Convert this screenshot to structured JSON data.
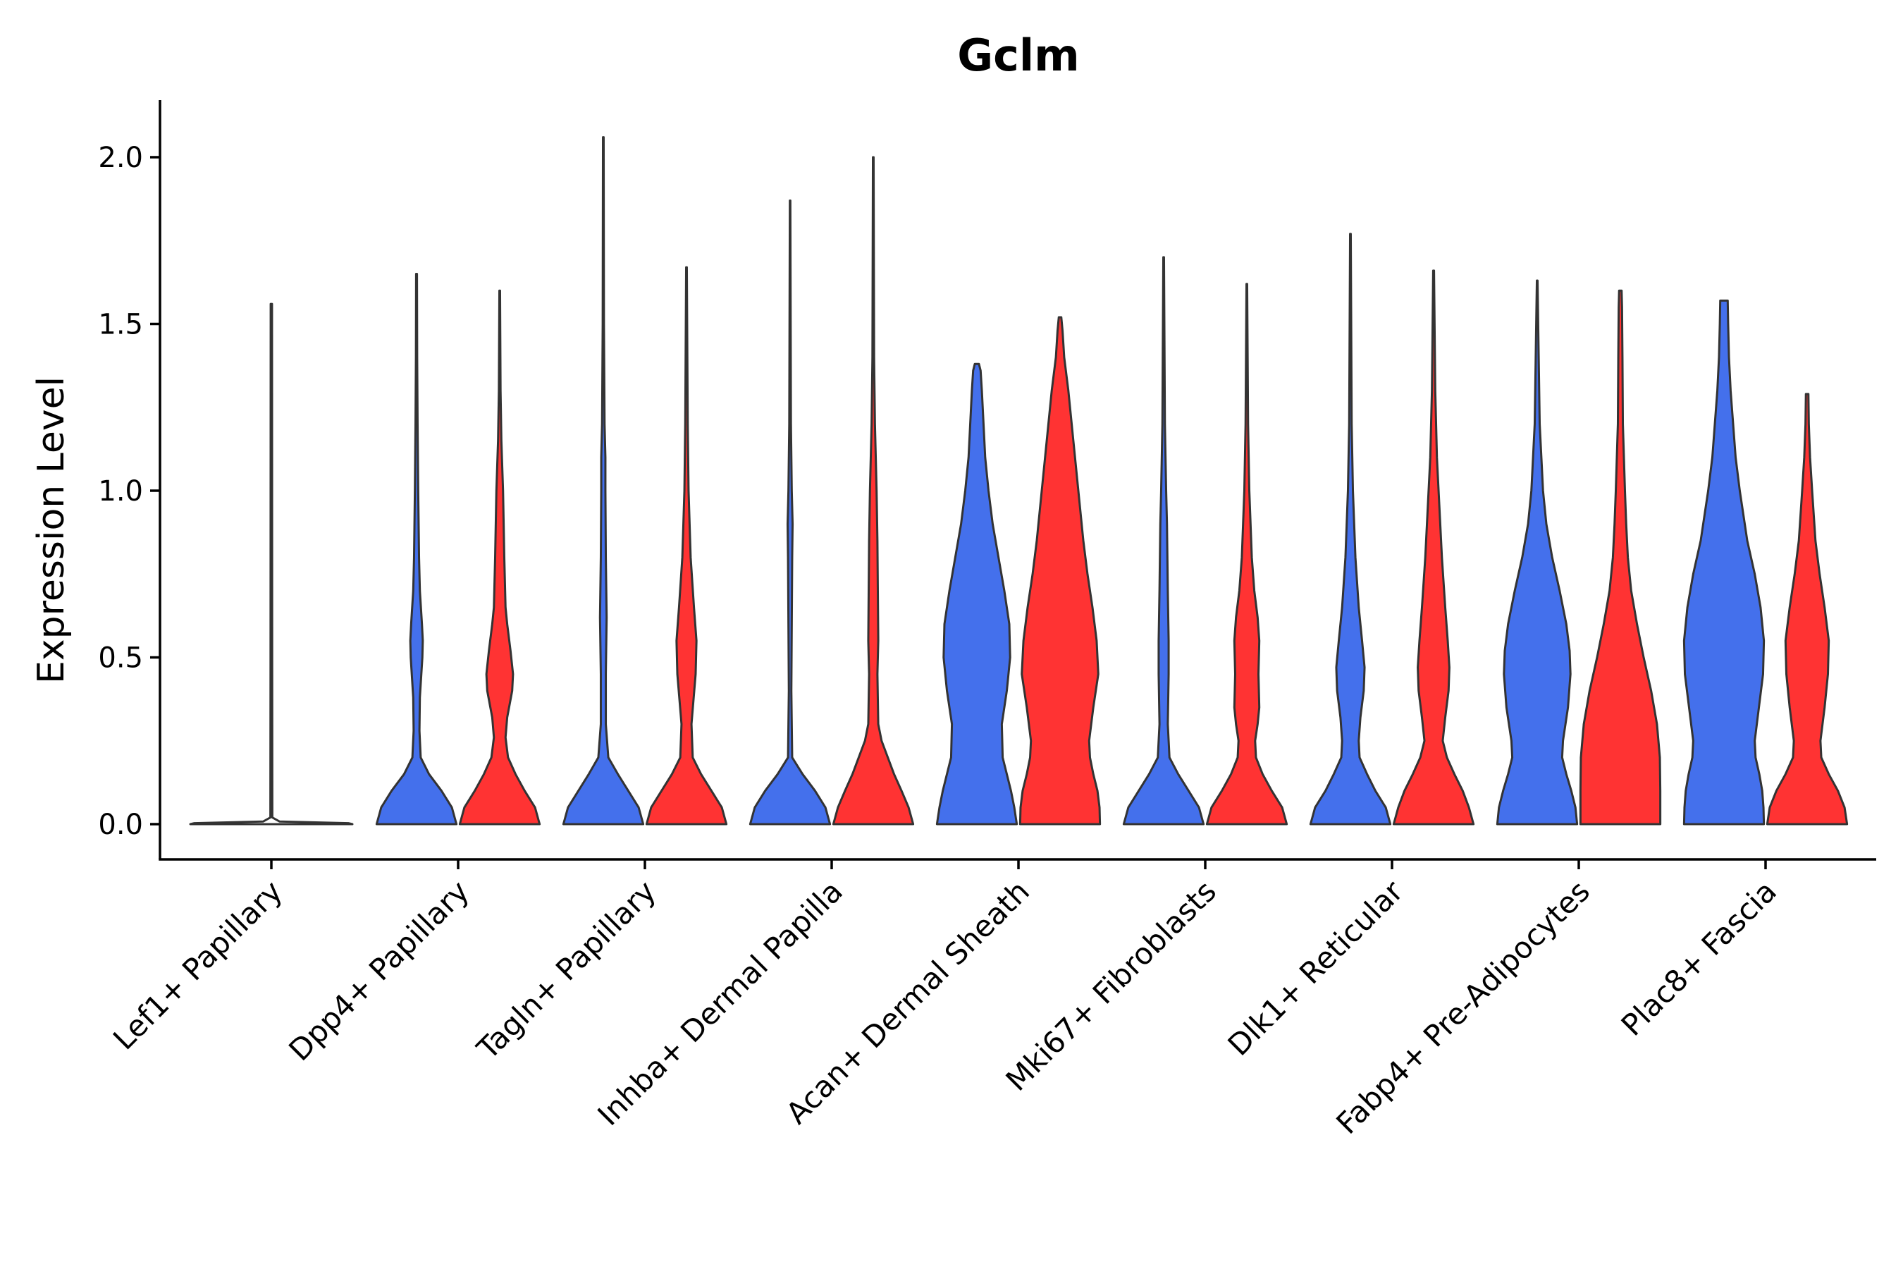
{
  "chart_data": {
    "type": "violin",
    "title": "Gclm",
    "xlabel": "",
    "ylabel": "Expression Level",
    "ylim": [
      -0.1,
      2.17
    ],
    "yticks": [
      0.0,
      0.5,
      1.0,
      1.5,
      2.0
    ],
    "ytick_labels": [
      "0.0",
      "0.5",
      "1.0",
      "1.5",
      "2.0"
    ],
    "legend": "none",
    "series": [
      {
        "name": "group-blue",
        "color": "#4470EC"
      },
      {
        "name": "group-red",
        "color": "#FF3333"
      }
    ],
    "categories": [
      "Lef1+ Papillary",
      "Dpp4+ Papillary",
      "Tagln+ Papillary",
      "Inhba+ Dermal Papilla",
      "Acan+ Dermal Sheath",
      "Mki67+ Fibroblasts",
      "Dlk1+ Reticular",
      "Fabp4+ Pre-Adipocytes",
      "Plac8+ Fascia"
    ],
    "violins": [
      {
        "category": "Lef1+ Papillary",
        "series": "group-single",
        "max": 1.56,
        "profile": [
          [
            0,
            1.0
          ],
          [
            0.003,
            0.95
          ],
          [
            0.008,
            0.1
          ],
          [
            0.02,
            0.012
          ],
          [
            0.5,
            0.01
          ],
          [
            1.56,
            0.008
          ]
        ]
      },
      {
        "category": "Dpp4+ Papillary",
        "series": "group-blue",
        "max": 1.65,
        "profile": [
          [
            0,
            0.96
          ],
          [
            0.05,
            0.85
          ],
          [
            0.1,
            0.6
          ],
          [
            0.15,
            0.3
          ],
          [
            0.2,
            0.1
          ],
          [
            0.28,
            0.07
          ],
          [
            0.38,
            0.08
          ],
          [
            0.5,
            0.14
          ],
          [
            0.55,
            0.15
          ],
          [
            0.6,
            0.13
          ],
          [
            0.7,
            0.08
          ],
          [
            0.8,
            0.06
          ],
          [
            1.0,
            0.04
          ],
          [
            1.2,
            0.025
          ],
          [
            1.4,
            0.015
          ],
          [
            1.65,
            0.01
          ]
        ]
      },
      {
        "category": "Dpp4+ Papillary",
        "series": "group-red",
        "max": 1.6,
        "profile": [
          [
            0,
            0.96
          ],
          [
            0.05,
            0.85
          ],
          [
            0.1,
            0.6
          ],
          [
            0.15,
            0.38
          ],
          [
            0.2,
            0.2
          ],
          [
            0.26,
            0.14
          ],
          [
            0.32,
            0.18
          ],
          [
            0.4,
            0.3
          ],
          [
            0.45,
            0.32
          ],
          [
            0.52,
            0.26
          ],
          [
            0.6,
            0.18
          ],
          [
            0.65,
            0.14
          ],
          [
            0.8,
            0.11
          ],
          [
            1.0,
            0.08
          ],
          [
            1.15,
            0.04
          ],
          [
            1.3,
            0.02
          ],
          [
            1.6,
            0.008
          ]
        ]
      },
      {
        "category": "Tagln+ Papillary",
        "series": "group-blue",
        "max": 2.06,
        "profile": [
          [
            0,
            0.96
          ],
          [
            0.05,
            0.85
          ],
          [
            0.1,
            0.6
          ],
          [
            0.15,
            0.35
          ],
          [
            0.2,
            0.12
          ],
          [
            0.3,
            0.06
          ],
          [
            0.45,
            0.06
          ],
          [
            0.62,
            0.08
          ],
          [
            0.8,
            0.06
          ],
          [
            1.0,
            0.05
          ],
          [
            1.1,
            0.05
          ],
          [
            1.2,
            0.03
          ],
          [
            1.5,
            0.015
          ],
          [
            2.06,
            0.008
          ]
        ]
      },
      {
        "category": "Tagln+ Papillary",
        "series": "group-red",
        "max": 1.67,
        "profile": [
          [
            0,
            0.96
          ],
          [
            0.05,
            0.85
          ],
          [
            0.1,
            0.6
          ],
          [
            0.15,
            0.35
          ],
          [
            0.2,
            0.15
          ],
          [
            0.3,
            0.12
          ],
          [
            0.45,
            0.22
          ],
          [
            0.55,
            0.24
          ],
          [
            0.65,
            0.18
          ],
          [
            0.8,
            0.1
          ],
          [
            1.0,
            0.05
          ],
          [
            1.2,
            0.03
          ],
          [
            1.67,
            0.008
          ]
        ]
      },
      {
        "category": "Inhba+ Dermal Papilla",
        "series": "group-blue",
        "max": 1.87,
        "profile": [
          [
            0,
            0.96
          ],
          [
            0.05,
            0.85
          ],
          [
            0.1,
            0.6
          ],
          [
            0.15,
            0.3
          ],
          [
            0.2,
            0.05
          ],
          [
            0.4,
            0.03
          ],
          [
            0.6,
            0.04
          ],
          [
            0.8,
            0.05
          ],
          [
            0.9,
            0.06
          ],
          [
            1.0,
            0.04
          ],
          [
            1.2,
            0.02
          ],
          [
            1.87,
            0.006
          ]
        ]
      },
      {
        "category": "Inhba+ Dermal Papilla",
        "series": "group-red",
        "max": 2.0,
        "profile": [
          [
            0,
            0.96
          ],
          [
            0.05,
            0.85
          ],
          [
            0.1,
            0.68
          ],
          [
            0.15,
            0.5
          ],
          [
            0.2,
            0.35
          ],
          [
            0.25,
            0.2
          ],
          [
            0.3,
            0.12
          ],
          [
            0.45,
            0.1
          ],
          [
            0.55,
            0.12
          ],
          [
            0.7,
            0.11
          ],
          [
            0.85,
            0.1
          ],
          [
            1.0,
            0.08
          ],
          [
            1.2,
            0.04
          ],
          [
            1.4,
            0.02
          ],
          [
            2.0,
            0.008
          ]
        ]
      },
      {
        "category": "Acan+ Dermal Sheath",
        "series": "group-blue",
        "max": 1.38,
        "profile": [
          [
            0,
            0.96
          ],
          [
            0.05,
            0.9
          ],
          [
            0.1,
            0.82
          ],
          [
            0.15,
            0.72
          ],
          [
            0.2,
            0.62
          ],
          [
            0.3,
            0.6
          ],
          [
            0.4,
            0.72
          ],
          [
            0.5,
            0.8
          ],
          [
            0.6,
            0.78
          ],
          [
            0.7,
            0.66
          ],
          [
            0.8,
            0.52
          ],
          [
            0.9,
            0.38
          ],
          [
            1.0,
            0.28
          ],
          [
            1.1,
            0.2
          ],
          [
            1.2,
            0.16
          ],
          [
            1.3,
            0.12
          ],
          [
            1.36,
            0.09
          ],
          [
            1.38,
            0.05
          ]
        ]
      },
      {
        "category": "Acan+ Dermal Sheath",
        "series": "group-red",
        "max": 1.52,
        "profile": [
          [
            0,
            0.96
          ],
          [
            0.05,
            0.95
          ],
          [
            0.1,
            0.9
          ],
          [
            0.15,
            0.8
          ],
          [
            0.2,
            0.72
          ],
          [
            0.25,
            0.7
          ],
          [
            0.35,
            0.8
          ],
          [
            0.45,
            0.92
          ],
          [
            0.55,
            0.88
          ],
          [
            0.65,
            0.78
          ],
          [
            0.75,
            0.66
          ],
          [
            0.85,
            0.56
          ],
          [
            1.0,
            0.44
          ],
          [
            1.1,
            0.36
          ],
          [
            1.2,
            0.28
          ],
          [
            1.3,
            0.2
          ],
          [
            1.4,
            0.1
          ],
          [
            1.48,
            0.06
          ],
          [
            1.52,
            0.03
          ]
        ]
      },
      {
        "category": "Mki67+ Fibroblasts",
        "series": "group-blue",
        "max": 1.7,
        "profile": [
          [
            0,
            0.96
          ],
          [
            0.05,
            0.85
          ],
          [
            0.1,
            0.6
          ],
          [
            0.15,
            0.35
          ],
          [
            0.2,
            0.14
          ],
          [
            0.3,
            0.1
          ],
          [
            0.45,
            0.12
          ],
          [
            0.55,
            0.12
          ],
          [
            0.7,
            0.1
          ],
          [
            0.9,
            0.08
          ],
          [
            1.0,
            0.06
          ],
          [
            1.2,
            0.03
          ],
          [
            1.7,
            0.008
          ]
        ]
      },
      {
        "category": "Mki67+ Fibroblasts",
        "series": "group-red",
        "max": 1.62,
        "profile": [
          [
            0,
            0.96
          ],
          [
            0.05,
            0.85
          ],
          [
            0.1,
            0.6
          ],
          [
            0.15,
            0.38
          ],
          [
            0.2,
            0.22
          ],
          [
            0.25,
            0.2
          ],
          [
            0.3,
            0.26
          ],
          [
            0.35,
            0.3
          ],
          [
            0.45,
            0.28
          ],
          [
            0.55,
            0.3
          ],
          [
            0.62,
            0.26
          ],
          [
            0.7,
            0.18
          ],
          [
            0.8,
            0.12
          ],
          [
            1.0,
            0.06
          ],
          [
            1.2,
            0.03
          ],
          [
            1.62,
            0.008
          ]
        ]
      },
      {
        "category": "Dlk1+ Reticular",
        "series": "group-blue",
        "max": 1.77,
        "profile": [
          [
            0,
            0.96
          ],
          [
            0.05,
            0.85
          ],
          [
            0.1,
            0.6
          ],
          [
            0.15,
            0.4
          ],
          [
            0.2,
            0.22
          ],
          [
            0.25,
            0.2
          ],
          [
            0.32,
            0.24
          ],
          [
            0.4,
            0.32
          ],
          [
            0.47,
            0.34
          ],
          [
            0.55,
            0.28
          ],
          [
            0.65,
            0.2
          ],
          [
            0.8,
            0.12
          ],
          [
            1.0,
            0.06
          ],
          [
            1.2,
            0.03
          ],
          [
            1.77,
            0.008
          ]
        ]
      },
      {
        "category": "Dlk1+ Reticular",
        "series": "group-red",
        "max": 1.66,
        "profile": [
          [
            0,
            0.96
          ],
          [
            0.05,
            0.85
          ],
          [
            0.1,
            0.7
          ],
          [
            0.15,
            0.5
          ],
          [
            0.2,
            0.32
          ],
          [
            0.25,
            0.22
          ],
          [
            0.32,
            0.28
          ],
          [
            0.4,
            0.36
          ],
          [
            0.47,
            0.38
          ],
          [
            0.55,
            0.34
          ],
          [
            0.65,
            0.28
          ],
          [
            0.8,
            0.2
          ],
          [
            0.95,
            0.14
          ],
          [
            1.1,
            0.08
          ],
          [
            1.3,
            0.04
          ],
          [
            1.66,
            0.01
          ]
        ]
      },
      {
        "category": "Fabp4+ Pre-Adipocytes",
        "series": "group-blue",
        "max": 1.63,
        "profile": [
          [
            0,
            0.96
          ],
          [
            0.05,
            0.92
          ],
          [
            0.1,
            0.82
          ],
          [
            0.15,
            0.7
          ],
          [
            0.2,
            0.6
          ],
          [
            0.25,
            0.62
          ],
          [
            0.35,
            0.74
          ],
          [
            0.45,
            0.8
          ],
          [
            0.52,
            0.78
          ],
          [
            0.6,
            0.7
          ],
          [
            0.7,
            0.54
          ],
          [
            0.8,
            0.36
          ],
          [
            0.9,
            0.22
          ],
          [
            1.0,
            0.14
          ],
          [
            1.2,
            0.06
          ],
          [
            1.63,
            0.008
          ]
        ]
      },
      {
        "category": "Fabp4+ Pre-Adipocytes",
        "series": "group-red",
        "max": 1.6,
        "profile": [
          [
            0,
            0.96
          ],
          [
            0.1,
            0.96
          ],
          [
            0.2,
            0.95
          ],
          [
            0.3,
            0.88
          ],
          [
            0.4,
            0.74
          ],
          [
            0.5,
            0.56
          ],
          [
            0.6,
            0.4
          ],
          [
            0.7,
            0.26
          ],
          [
            0.8,
            0.18
          ],
          [
            0.9,
            0.14
          ],
          [
            1.0,
            0.11
          ],
          [
            1.2,
            0.06
          ],
          [
            1.4,
            0.05
          ],
          [
            1.55,
            0.04
          ],
          [
            1.6,
            0.03
          ]
        ]
      },
      {
        "category": "Plac8+ Fascia",
        "series": "group-blue",
        "max": 1.57,
        "profile": [
          [
            0,
            0.96
          ],
          [
            0.05,
            0.95
          ],
          [
            0.1,
            0.92
          ],
          [
            0.15,
            0.85
          ],
          [
            0.2,
            0.76
          ],
          [
            0.25,
            0.74
          ],
          [
            0.35,
            0.84
          ],
          [
            0.45,
            0.94
          ],
          [
            0.55,
            0.96
          ],
          [
            0.65,
            0.88
          ],
          [
            0.75,
            0.74
          ],
          [
            0.85,
            0.56
          ],
          [
            1.0,
            0.38
          ],
          [
            1.1,
            0.28
          ],
          [
            1.2,
            0.22
          ],
          [
            1.3,
            0.16
          ],
          [
            1.4,
            0.12
          ],
          [
            1.5,
            0.1
          ],
          [
            1.57,
            0.09
          ]
        ]
      },
      {
        "category": "Plac8+ Fascia",
        "series": "group-red",
        "max": 1.29,
        "profile": [
          [
            0,
            0.96
          ],
          [
            0.05,
            0.9
          ],
          [
            0.1,
            0.74
          ],
          [
            0.15,
            0.52
          ],
          [
            0.2,
            0.34
          ],
          [
            0.25,
            0.32
          ],
          [
            0.35,
            0.42
          ],
          [
            0.45,
            0.5
          ],
          [
            0.55,
            0.52
          ],
          [
            0.65,
            0.42
          ],
          [
            0.75,
            0.3
          ],
          [
            0.85,
            0.2
          ],
          [
            1.0,
            0.12
          ],
          [
            1.1,
            0.07
          ],
          [
            1.2,
            0.04
          ],
          [
            1.29,
            0.03
          ]
        ]
      }
    ]
  }
}
